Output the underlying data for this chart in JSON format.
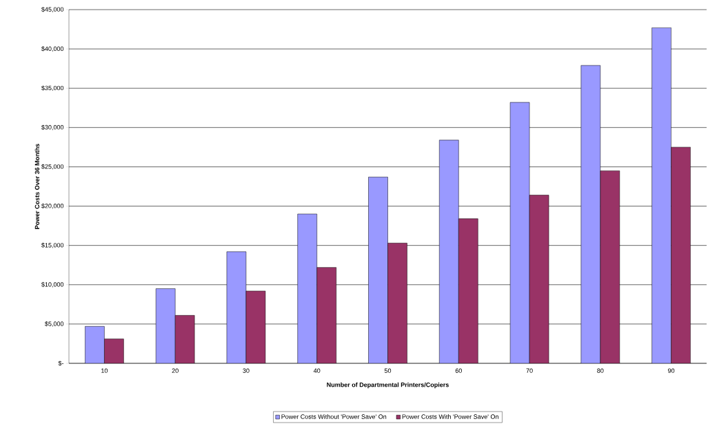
{
  "chart_data": {
    "type": "bar",
    "xlabel": "Number of Departmental Printers/Copiers",
    "ylabel": "Power Costs Over 36 Months",
    "categories": [
      "10",
      "20",
      "30",
      "40",
      "50",
      "60",
      "70",
      "80",
      "90"
    ],
    "series": [
      {
        "name": "Power Costs Without 'Power Save' On",
        "color": "#9999ff",
        "values": [
          4700,
          9500,
          14200,
          19000,
          23700,
          28400,
          33200,
          37900,
          42700
        ]
      },
      {
        "name": "Power Costs With 'Power Save' On",
        "color": "#993366",
        "values": [
          3100,
          6100,
          9200,
          12200,
          15300,
          18400,
          21400,
          24500,
          27500
        ]
      }
    ],
    "ylim": [
      0,
      45000
    ],
    "yticks": [
      {
        "value": 0,
        "label": "$-"
      },
      {
        "value": 5000,
        "label": "$5,000"
      },
      {
        "value": 10000,
        "label": "$10,000"
      },
      {
        "value": 15000,
        "label": "$15,000"
      },
      {
        "value": 20000,
        "label": "$20,000"
      },
      {
        "value": 25000,
        "label": "$25,000"
      },
      {
        "value": 30000,
        "label": "$30,000"
      },
      {
        "value": 35000,
        "label": "$35,000"
      },
      {
        "value": 40000,
        "label": "$40,000"
      },
      {
        "value": 45000,
        "label": "$45,000"
      }
    ],
    "grid": "y",
    "legend": "bottom"
  }
}
